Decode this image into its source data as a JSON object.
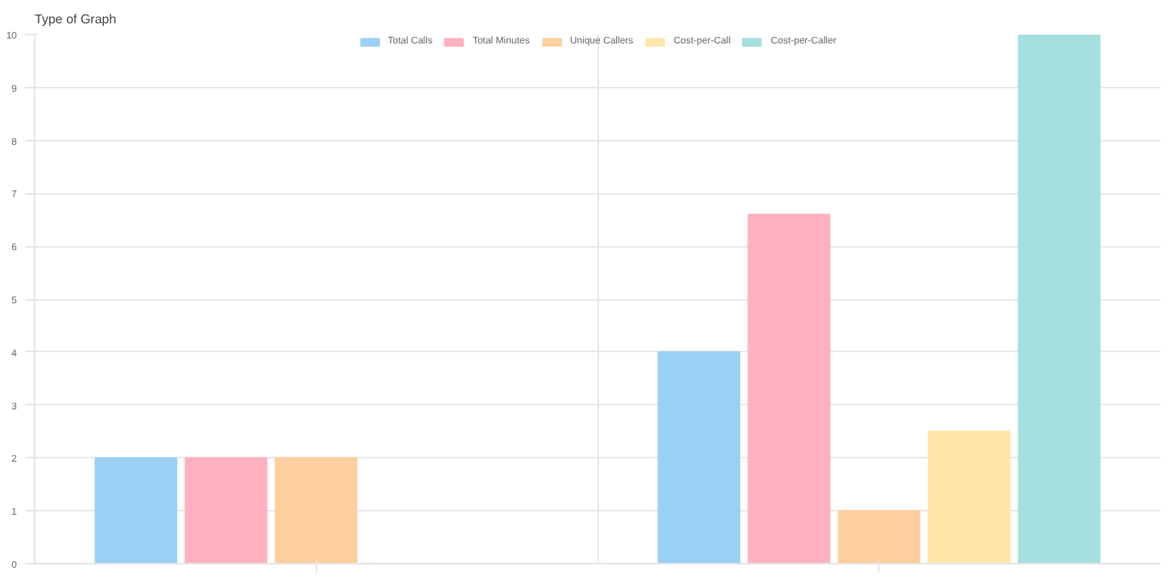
{
  "chart_data": {
    "type": "bar",
    "title": "Type of Graph",
    "categories": [
      null,
      null
    ],
    "series": [
      {
        "name": "Total Calls",
        "color": "#9bd0f5",
        "values": [
          2,
          4
        ]
      },
      {
        "name": "Total Minutes",
        "color": "#ffb1c1",
        "values": [
          2,
          6.6
        ]
      },
      {
        "name": "Unique Callers",
        "color": "#ffcf9f",
        "values": [
          2,
          1
        ]
      },
      {
        "name": "Cost-per-Call",
        "color": "#ffe6aa",
        "values": [
          null,
          2.5
        ]
      },
      {
        "name": "Cost-per-Caller",
        "color": "#a5dfdf",
        "values": [
          null,
          10
        ]
      }
    ],
    "ylim": [
      0,
      10
    ],
    "yticks": [
      0,
      1,
      2,
      3,
      4,
      5,
      6,
      7,
      8,
      9,
      10
    ],
    "grid": true,
    "legend": "top"
  }
}
